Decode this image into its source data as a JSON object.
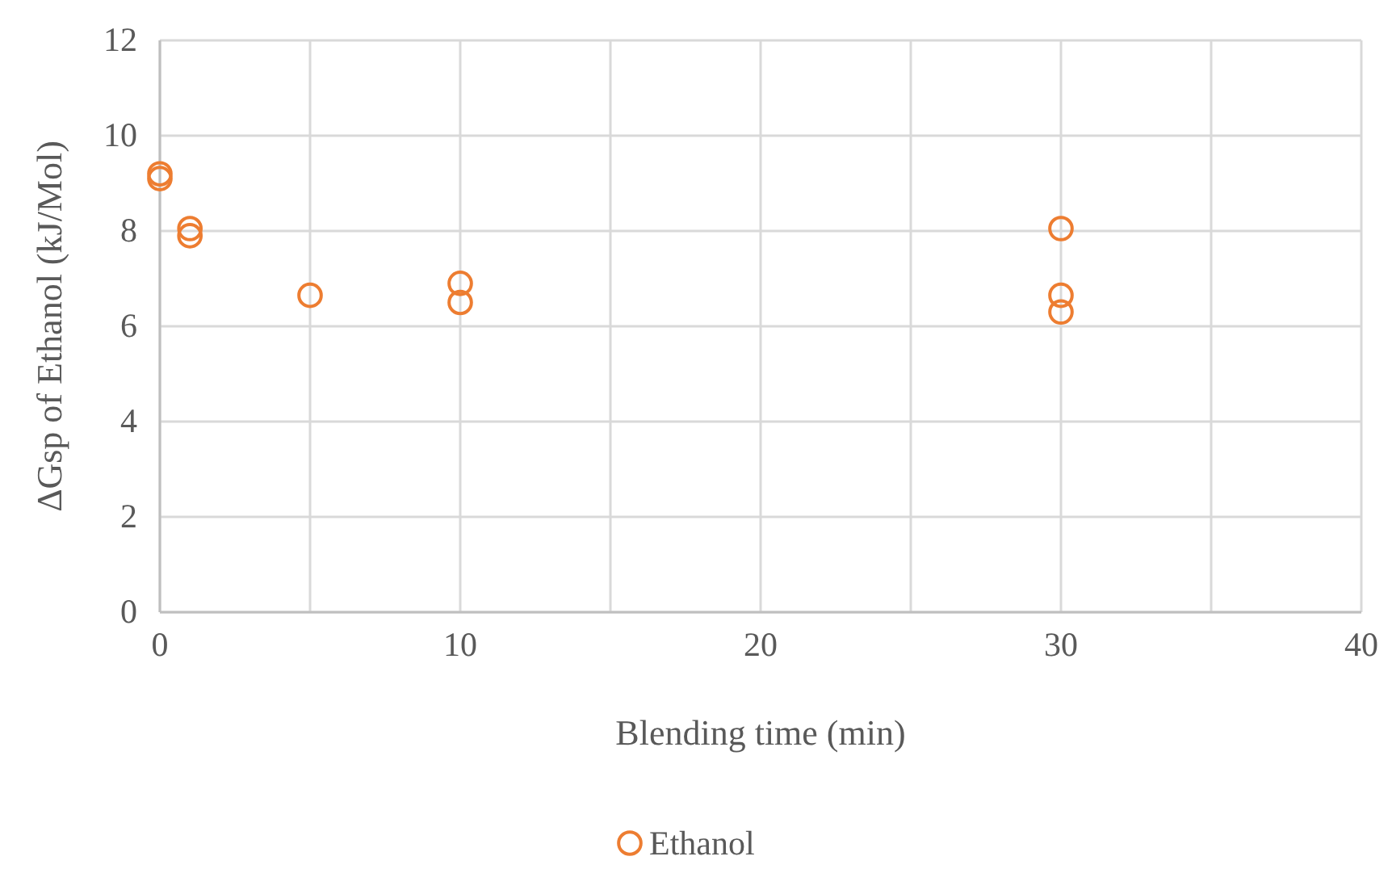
{
  "chart_data": {
    "type": "scatter",
    "xlabel": "Blending time (min)",
    "ylabel": "ΔGsp of Ethanol  (kJ/Mol)",
    "x": [
      0,
      0,
      1,
      1,
      5,
      10,
      10,
      30,
      30,
      30
    ],
    "series": [
      {
        "name": "Ethanol",
        "color": "#ed7d31",
        "values": [
          9.1,
          9.2,
          8.05,
          7.9,
          6.65,
          6.9,
          6.5,
          8.05,
          6.65,
          6.3
        ]
      }
    ],
    "xlim": [
      0,
      40
    ],
    "xticks": [
      0,
      10,
      20,
      30,
      40
    ],
    "ylim": [
      0,
      12
    ],
    "yticks": [
      0,
      2,
      4,
      6,
      8,
      10,
      12
    ],
    "grid": true,
    "legend": "bottom",
    "marker": "circle"
  }
}
